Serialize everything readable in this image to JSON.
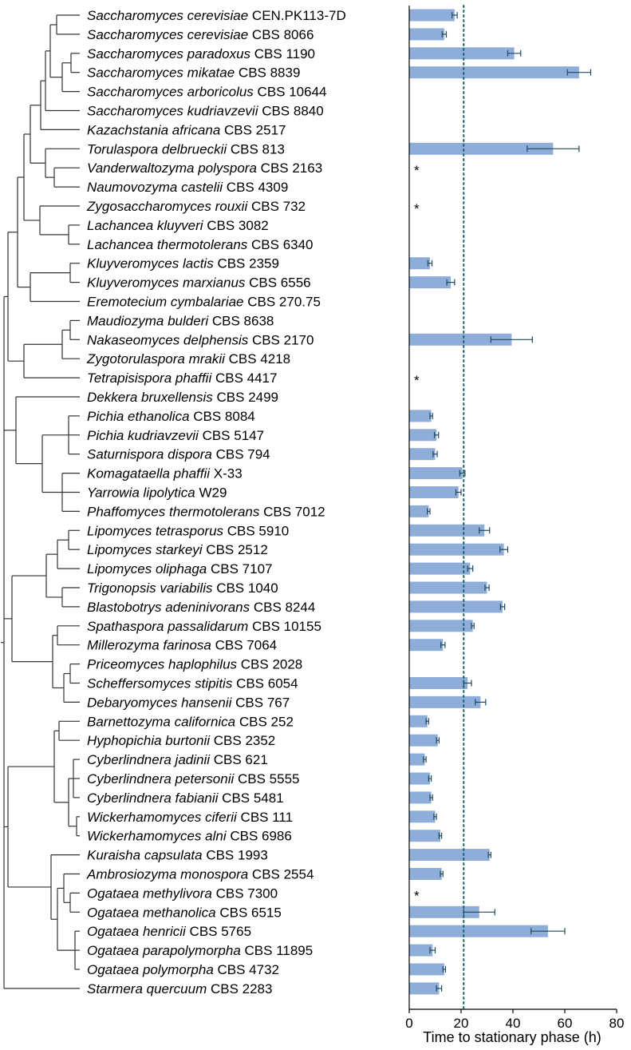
{
  "chart_data": {
    "type": "bar",
    "orientation": "horizontal",
    "xlabel": "Time to stationary phase  (h)",
    "xlim": [
      0,
      80
    ],
    "xticks": [
      0,
      20,
      40,
      60,
      80
    ],
    "reference_line": 21,
    "bar_color": "#8eadd9",
    "error_color": "#1f4a5c",
    "ref_line_color": "#1f5f6b",
    "tree_color": "#333333",
    "star_symbol": "*",
    "rows": [
      {
        "species": "Saccharomyces cerevisiae",
        "strain": "CEN.PK113-7D",
        "value": 17.5,
        "err": 1.0,
        "star": false
      },
      {
        "species": "Saccharomyces cerevisiae",
        "strain": "CBS 8066",
        "value": 13.5,
        "err": 0.8,
        "star": false
      },
      {
        "species": "Saccharomyces paradoxus",
        "strain": "CBS 1190",
        "value": 40.5,
        "err": 2.5,
        "star": false
      },
      {
        "species": "Saccharomyces mikatae",
        "strain": "CBS 8839",
        "value": 65.5,
        "err": 4.5,
        "star": false
      },
      {
        "species": "Saccharomyces arboricolus",
        "strain": "CBS 10644",
        "value": null,
        "err": null,
        "star": false
      },
      {
        "species": "Saccharomyces kudriavzevii",
        "strain": "CBS 8840",
        "value": null,
        "err": null,
        "star": false
      },
      {
        "species": "Kazachstania africana",
        "strain": "CBS 2517",
        "value": null,
        "err": null,
        "star": false
      },
      {
        "species": "Torulaspora delbrueckii",
        "strain": "CBS 813",
        "value": 55.5,
        "err": 10.0,
        "star": false
      },
      {
        "species": "Vanderwaltozyma polyspora",
        "strain": "CBS 2163",
        "value": null,
        "err": null,
        "star": true
      },
      {
        "species": "Naumovozyma castelii",
        "strain": "CBS 4309",
        "value": null,
        "err": null,
        "star": false
      },
      {
        "species": "Zygosaccharomyces rouxii",
        "strain": "CBS 732",
        "value": null,
        "err": null,
        "star": true
      },
      {
        "species": "Lachancea kluyveri",
        "strain": "CBS 3082",
        "value": null,
        "err": null,
        "star": false
      },
      {
        "species": "Lachancea thermotolerans",
        "strain": "CBS 6340",
        "value": null,
        "err": null,
        "star": false
      },
      {
        "species": "Kluyveromyces lactis",
        "strain": "CBS 2359",
        "value": 8.0,
        "err": 0.8,
        "star": false
      },
      {
        "species": "Kluyveromyces marxianus",
        "strain": "CBS 6556",
        "value": 16.0,
        "err": 1.5,
        "star": false
      },
      {
        "species": "Eremotecium cymbalariae",
        "strain": "CBS 270.75",
        "value": null,
        "err": null,
        "star": false
      },
      {
        "species": "Maudiozyma bulderi",
        "strain": "CBS 8638",
        "value": null,
        "err": null,
        "star": false
      },
      {
        "species": "Nakaseomyces delphensis",
        "strain": "CBS 2170",
        "value": 39.5,
        "err": 8.0,
        "star": false
      },
      {
        "species": "Zygotorulaspora mrakii",
        "strain": "CBS 4218",
        "value": null,
        "err": null,
        "star": false
      },
      {
        "species": "Tetrapisispora phaffii",
        "strain": "CBS 4417",
        "value": null,
        "err": null,
        "star": true
      },
      {
        "species": "Dekkera bruxellensis",
        "strain": "CBS 2499",
        "value": null,
        "err": null,
        "star": false
      },
      {
        "species": "Pichia ethanolica",
        "strain": "CBS 8084",
        "value": 8.5,
        "err": 0.5,
        "star": false
      },
      {
        "species": "Pichia kudriavzevii",
        "strain": "CBS 5147",
        "value": 10.5,
        "err": 0.8,
        "star": false
      },
      {
        "species": "Saturnispora dispora",
        "strain": "CBS 794",
        "value": 10.0,
        "err": 0.8,
        "star": false
      },
      {
        "species": "Komagataella phaffii",
        "strain": "X-33",
        "value": 20.5,
        "err": 1.0,
        "star": false
      },
      {
        "species": "Yarrowia lipolytica",
        "strain": "W29",
        "value": 19.0,
        "err": 1.0,
        "star": false
      },
      {
        "species": "Phaffomyces thermotolerans",
        "strain": "CBS 7012",
        "value": 7.5,
        "err": 0.5,
        "star": false
      },
      {
        "species": "Lipomyces tetrasporus",
        "strain": "CBS 5910",
        "value": 29.0,
        "err": 2.0,
        "star": false
      },
      {
        "species": "Lipomyces starkeyi",
        "strain": "CBS 2512",
        "value": 36.5,
        "err": 1.5,
        "star": false
      },
      {
        "species": "Lipomyces oliphaga",
        "strain": "CBS 7107",
        "value": 23.5,
        "err": 1.0,
        "star": false
      },
      {
        "species": "Trigonopsis variabilis",
        "strain": "CBS 1040",
        "value": 30.0,
        "err": 0.8,
        "star": false
      },
      {
        "species": "Blastobotrys adeninivorans",
        "strain": "CBS 8244",
        "value": 36.0,
        "err": 0.8,
        "star": false
      },
      {
        "species": "Spathaspora passalidarum",
        "strain": "CBS 10155",
        "value": 24.5,
        "err": 0.5,
        "star": false
      },
      {
        "species": "Millerozyma farinosa",
        "strain": "CBS 7064",
        "value": 13.0,
        "err": 0.8,
        "star": false
      },
      {
        "species": "Priceomyces haplophilus",
        "strain": "CBS 2028",
        "value": null,
        "err": null,
        "star": false
      },
      {
        "species": "Scheffersomyces stipitis",
        "strain": "CBS 6054",
        "value": 22.5,
        "err": 1.5,
        "star": false
      },
      {
        "species": "Debaryomyces hansenii",
        "strain": "CBS 767",
        "value": 27.5,
        "err": 2.0,
        "star": false
      },
      {
        "species": "Barnettozyma californica",
        "strain": "CBS 252",
        "value": 7.0,
        "err": 0.5,
        "star": false
      },
      {
        "species": "Hyphopichia burtonii",
        "strain": "CBS 2352",
        "value": 11.0,
        "err": 0.5,
        "star": false
      },
      {
        "species": "Cyberlindnera jadinii",
        "strain": "CBS 621",
        "value": 6.0,
        "err": 0.5,
        "star": false
      },
      {
        "species": "Cyberlindnera petersonii",
        "strain": "CBS 5555",
        "value": 8.0,
        "err": 0.5,
        "star": false
      },
      {
        "species": "Cyberlindnera fabianii",
        "strain": "CBS 5481",
        "value": 8.5,
        "err": 0.5,
        "star": false
      },
      {
        "species": "Wickerhamomyces ciferii",
        "strain": "CBS 111",
        "value": 10.0,
        "err": 0.5,
        "star": false
      },
      {
        "species": "Wickerhamomyces alni",
        "strain": "CBS 6986",
        "value": 12.0,
        "err": 0.5,
        "star": false
      },
      {
        "species": "Kuraisha capsulata",
        "strain": "CBS 1993",
        "value": 31.0,
        "err": 0.5,
        "star": false
      },
      {
        "species": "Ambrosiozyma monospora",
        "strain": "CBS 2554",
        "value": 12.5,
        "err": 0.5,
        "star": false
      },
      {
        "species": "Ogataea methylivora",
        "strain": "CBS 7300",
        "value": null,
        "err": null,
        "star": true
      },
      {
        "species": "Ogataea methanolica",
        "strain": "CBS 6515",
        "value": 27.0,
        "err": 6.0,
        "star": false
      },
      {
        "species": "Ogataea henricii",
        "strain": "CBS 5765",
        "value": 53.5,
        "err": 6.5,
        "star": false
      },
      {
        "species": "Ogataea parapolymorpha",
        "strain": "CBS 11895",
        "value": 9.0,
        "err": 1.0,
        "star": false
      },
      {
        "species": "Ogataea polymorpha",
        "strain": "CBS 4732",
        "value": 13.5,
        "err": 0.5,
        "star": false
      },
      {
        "species": "Starmera quercuum",
        "strain": "CBS 2283",
        "value": 11.5,
        "err": 1.0,
        "star": false
      }
    ]
  }
}
